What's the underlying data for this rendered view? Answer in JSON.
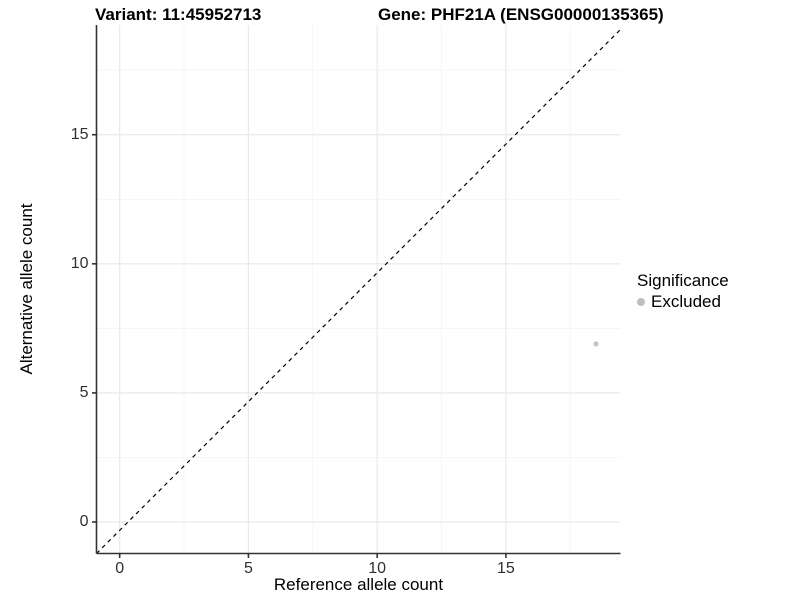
{
  "chart_data": {
    "type": "scatter",
    "titles": [
      "Variant: 11:45952713",
      "Gene: PHF21A (ENSG00000135365)"
    ],
    "xlabel": "Reference allele count",
    "ylabel": "Alternative allele count",
    "xlim": [
      -0.9,
      19.45
    ],
    "ylim": [
      -1.22,
      19.25
    ],
    "xticks": [
      0,
      5,
      10,
      15
    ],
    "yticks": [
      0,
      5,
      10,
      15
    ],
    "xminor": [
      2.5,
      7.5,
      12.5,
      17.5
    ],
    "yminor": [
      2.5,
      7.5,
      12.5,
      17.5
    ],
    "grid": {
      "major": true,
      "minor": true
    },
    "series": [
      {
        "name": "Excluded",
        "points": [
          {
            "x": 18.5,
            "y": 6.9
          }
        ]
      }
    ],
    "reference_line": {
      "kind": "identity y=x",
      "slope": 1,
      "intercept": 0,
      "linetype": "dashed",
      "color": "#000000"
    },
    "legend_position": "right",
    "legend": {
      "title": "Significance",
      "entries": [
        {
          "label": "Excluded",
          "color": "#bebebe"
        }
      ]
    },
    "colors": {
      "point": "#c4c4c4",
      "axis": "#333333",
      "tick_label": "#303030",
      "grid_major": "#e9e9e9",
      "grid_minor": "#f4f4f4",
      "background": "#ffffff"
    }
  }
}
